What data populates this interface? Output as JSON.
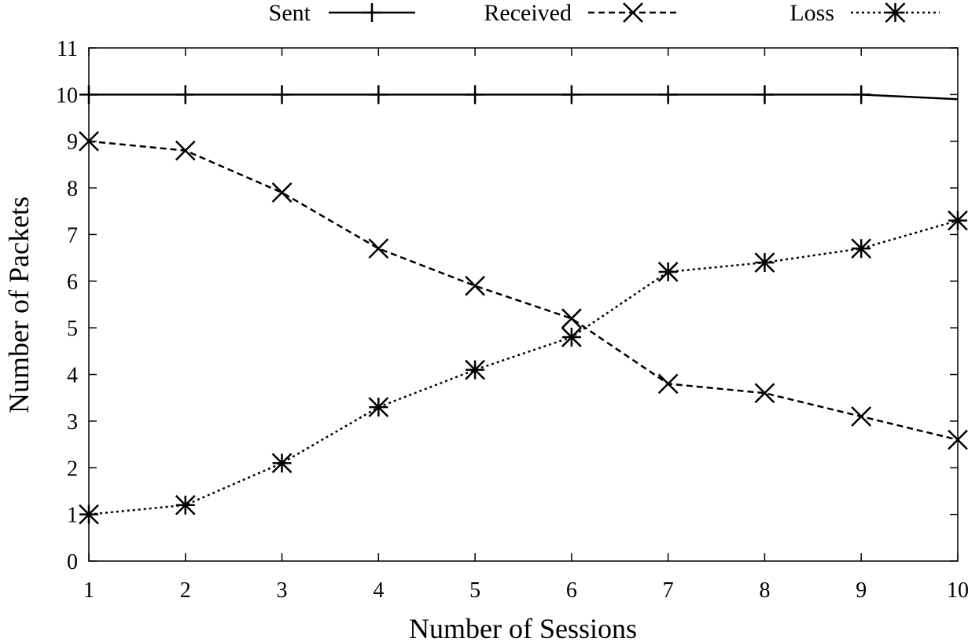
{
  "chart_data": {
    "type": "line",
    "title": "",
    "xlabel": "Number of Sessions",
    "ylabel": "Number of Packets",
    "xlim": [
      1,
      10
    ],
    "ylim": [
      0,
      11
    ],
    "x_ticks": [
      1,
      2,
      3,
      4,
      5,
      6,
      7,
      8,
      9,
      10
    ],
    "y_ticks": [
      0,
      1,
      2,
      3,
      4,
      5,
      6,
      7,
      8,
      9,
      10,
      11
    ],
    "grid": false,
    "legend_position": "top",
    "x": [
      1,
      2,
      3,
      4,
      5,
      6,
      7,
      8,
      9,
      10
    ],
    "series": [
      {
        "name": "Sent",
        "marker": "plus",
        "line": "solid",
        "color": "#000000",
        "values": [
          10,
          10,
          10,
          10,
          10,
          10,
          10,
          10,
          10,
          9.9
        ]
      },
      {
        "name": "Received",
        "marker": "cross",
        "line": "dashed",
        "color": "#000000",
        "values": [
          9,
          8.8,
          7.9,
          6.7,
          5.9,
          5.2,
          3.8,
          3.6,
          3.1,
          2.6
        ]
      },
      {
        "name": "Loss",
        "marker": "star",
        "line": "dotted",
        "color": "#000000",
        "values": [
          1,
          1.2,
          2.1,
          3.3,
          4.1,
          4.8,
          6.2,
          6.4,
          6.7,
          7.3
        ]
      }
    ]
  }
}
